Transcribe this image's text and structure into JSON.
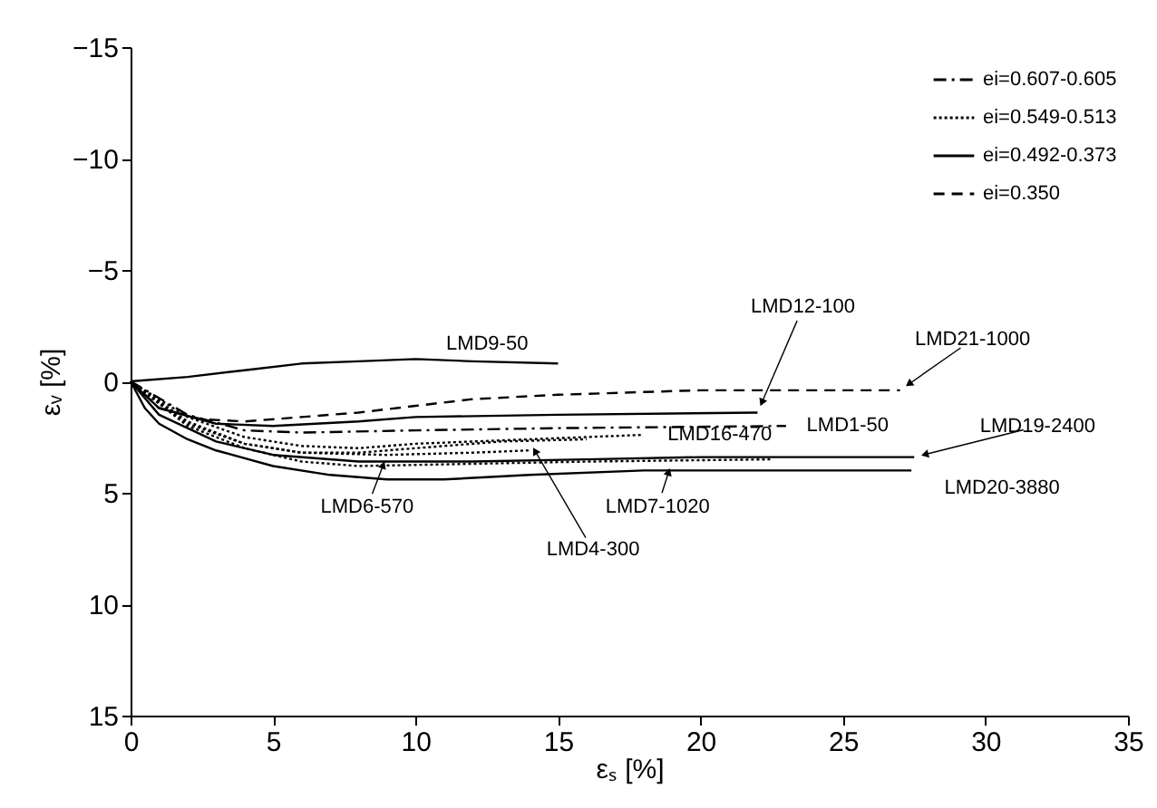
{
  "chart_data": {
    "type": "line",
    "xlabel": "εₛ [%]",
    "ylabel": "εᵥ [%]",
    "xlim": [
      0,
      35
    ],
    "xticks": [
      0,
      5,
      10,
      15,
      20,
      25,
      30,
      35
    ],
    "ylim": [
      15,
      -15
    ],
    "yticks": [
      -15,
      -10,
      -5,
      0,
      5,
      10,
      15
    ],
    "grid": false,
    "legend": "top right",
    "marker": "none",
    "series": [
      {
        "name": "ei=0.607-0.605",
        "color": "#000000",
        "line_style": "dashdot",
        "x": [
          0,
          2,
          4,
          6,
          10,
          15,
          23
        ],
        "values": [
          0,
          1.5,
          2.2,
          2.3,
          2.2,
          2.1,
          2.0
        ]
      },
      {
        "name": "ei=0.549-0.513",
        "color": "#000000",
        "line_style": "dotted",
        "x": [
          0,
          2,
          4,
          6,
          8,
          10,
          14,
          18
        ],
        "values": [
          0,
          1.6,
          2.5,
          2.9,
          3.0,
          2.8,
          2.6,
          2.4
        ]
      },
      {
        "color": "#000000",
        "line_style": "dotted",
        "x": [
          0,
          2,
          4,
          6,
          8,
          10,
          13,
          16
        ],
        "values": [
          0,
          1.8,
          2.8,
          3.2,
          3.2,
          3.0,
          2.7,
          2.6
        ]
      },
      {
        "color": "#000000",
        "line_style": "dotted",
        "x": [
          0,
          2,
          4,
          6,
          8,
          12,
          16,
          22.5
        ],
        "values": [
          0,
          2.0,
          3.0,
          3.6,
          3.8,
          3.7,
          3.6,
          3.5
        ]
      },
      {
        "color": "#000000",
        "line_style": "dotted",
        "x": [
          0,
          2,
          4,
          6,
          9,
          12,
          14
        ],
        "values": [
          0,
          1.9,
          2.8,
          3.2,
          3.3,
          3.2,
          3.1
        ]
      },
      {
        "name": "ei=0.492-0.373",
        "color": "#000000",
        "line_style": "solid",
        "x": [
          0,
          2,
          4,
          6,
          8,
          10,
          12,
          15
        ],
        "values": [
          0,
          -0.2,
          -0.5,
          -0.8,
          -0.9,
          -1.0,
          -0.9,
          -0.8
        ]
      },
      {
        "color": "#000000",
        "line_style": "solid",
        "x": [
          0,
          1,
          3,
          5,
          8,
          10,
          15,
          22
        ],
        "values": [
          0,
          1.2,
          1.9,
          2.0,
          1.8,
          1.6,
          1.5,
          1.4
        ]
      },
      {
        "color": "#000000",
        "line_style": "solid",
        "x": [
          0,
          1,
          3,
          5,
          8,
          12,
          16,
          20,
          27.5
        ],
        "values": [
          0,
          1.5,
          2.7,
          3.3,
          3.6,
          3.6,
          3.5,
          3.4,
          3.4
        ]
      },
      {
        "color": "#000000",
        "line_style": "solid",
        "x": [
          0,
          0.5,
          1,
          2,
          3,
          5,
          7,
          9,
          11,
          14,
          18,
          22,
          27.4
        ],
        "values": [
          0,
          1.2,
          1.9,
          2.6,
          3.1,
          3.8,
          4.2,
          4.4,
          4.4,
          4.2,
          4.0,
          4.0,
          4.0
        ]
      },
      {
        "name": "ei=0.350",
        "color": "#000000",
        "line_style": "dashed",
        "x": [
          0,
          1,
          2.5,
          4,
          6,
          8,
          10,
          12,
          15,
          20,
          27
        ],
        "values": [
          0,
          1.2,
          1.7,
          1.8,
          1.6,
          1.4,
          1.1,
          0.8,
          0.6,
          0.4,
          0.4
        ]
      }
    ],
    "annotations": [
      {
        "text": "LMD9-50",
        "x": 12,
        "y": -1
      },
      {
        "text": "LMD12-100",
        "x": 22,
        "y": 1.4
      },
      {
        "text": "LMD21-1000",
        "x": 27,
        "y": 0.4
      },
      {
        "text": "LMD1-50",
        "x": 23,
        "y": 2.0
      },
      {
        "text": "LMD19-2400",
        "x": 27.5,
        "y": 3.4
      },
      {
        "text": "LMD16-470",
        "x": 18,
        "y": 2.4
      },
      {
        "text": "LMD20-3880",
        "x": 27.4,
        "y": 4.0
      },
      {
        "text": "LMD7-1020",
        "x": 19,
        "y": 3.6
      },
      {
        "text": "LMD4-300",
        "x": 14,
        "y": 2.7
      },
      {
        "text": "LMD6-570",
        "x": 9,
        "y": 3.3
      }
    ]
  }
}
